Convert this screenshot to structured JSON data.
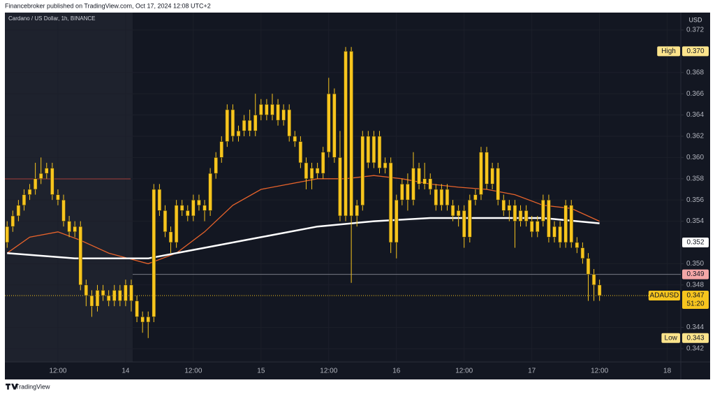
{
  "header": "Financebroker published on TradingView.com, Oct 17, 2024 12:08 UTC+2",
  "footer": "TradingView",
  "chart_data": {
    "type": "candlestick",
    "title": "Cardano / US Dollar, 1h, BINANCE",
    "currency": "USD",
    "color": "#f7c51e",
    "grid": true,
    "xlim": [
      -0.4,
      119.4
    ],
    "ylim": [
      0.34075,
      0.37364
    ],
    "xticks": [
      {
        "value": 9,
        "label": "12:00"
      },
      {
        "value": 21,
        "label": "14"
      },
      {
        "value": 33,
        "label": "12:00"
      },
      {
        "value": 45,
        "label": "15"
      },
      {
        "value": 57,
        "label": "12:00"
      },
      {
        "value": 69,
        "label": "16"
      },
      {
        "value": 81,
        "label": "12:00"
      },
      {
        "value": 93,
        "label": "17"
      },
      {
        "value": 105,
        "label": "12:00"
      },
      {
        "value": 117,
        "label": "18"
      }
    ],
    "yticks": [
      0.342,
      0.344,
      0.348,
      {
        "value": 0.35,
        "label": "0.350"
      },
      0.354,
      0.356,
      0.358,
      {
        "value": 0.36,
        "label": "0.360"
      },
      0.362,
      0.364,
      0.366,
      0.368,
      0.372
    ],
    "candles": [
      [
        0.352,
        0.354,
        0.3515,
        0.3535
      ],
      [
        0.3535,
        0.355,
        0.353,
        0.3545
      ],
      [
        0.3545,
        0.356,
        0.354,
        0.3555
      ],
      [
        0.3555,
        0.357,
        0.355,
        0.3565
      ],
      [
        0.3565,
        0.3575,
        0.356,
        0.357
      ],
      [
        0.357,
        0.3595,
        0.3565,
        0.358
      ],
      [
        0.358,
        0.36,
        0.3575,
        0.3585
      ],
      [
        0.3585,
        0.3595,
        0.358,
        0.359
      ],
      [
        0.359,
        0.3595,
        0.356,
        0.3565
      ],
      [
        0.3565,
        0.357,
        0.3555,
        0.356
      ],
      [
        0.356,
        0.3565,
        0.3535,
        0.354
      ],
      [
        0.354,
        0.3545,
        0.3525,
        0.353
      ],
      [
        0.353,
        0.354,
        0.3525,
        0.3535
      ],
      [
        0.3535,
        0.354,
        0.3475,
        0.348
      ],
      [
        0.348,
        0.3485,
        0.346,
        0.347
      ],
      [
        0.347,
        0.3475,
        0.345,
        0.346
      ],
      [
        0.346,
        0.348,
        0.3455,
        0.3475
      ],
      [
        0.3475,
        0.348,
        0.3465,
        0.347
      ],
      [
        0.347,
        0.3475,
        0.346,
        0.3465
      ],
      [
        0.3465,
        0.348,
        0.346,
        0.3475
      ],
      [
        0.3475,
        0.348,
        0.346,
        0.3465
      ],
      [
        0.3465,
        0.3485,
        0.346,
        0.348
      ],
      [
        0.348,
        0.3485,
        0.3455,
        0.3465
      ],
      [
        0.3465,
        0.347,
        0.3445,
        0.345
      ],
      [
        0.345,
        0.3455,
        0.3435,
        0.3445
      ],
      [
        0.3445,
        0.3455,
        0.343,
        0.345
      ],
      [
        0.345,
        0.3575,
        0.3445,
        0.357
      ],
      [
        0.357,
        0.3575,
        0.3545,
        0.355
      ],
      [
        0.355,
        0.3555,
        0.3525,
        0.353
      ],
      [
        0.353,
        0.3535,
        0.351,
        0.352
      ],
      [
        0.352,
        0.356,
        0.3515,
        0.3555
      ],
      [
        0.3555,
        0.356,
        0.3545,
        0.355
      ],
      [
        0.355,
        0.3555,
        0.354,
        0.3545
      ],
      [
        0.3545,
        0.3565,
        0.354,
        0.356
      ],
      [
        0.356,
        0.3565,
        0.355,
        0.3555
      ],
      [
        0.3555,
        0.356,
        0.354,
        0.355
      ],
      [
        0.355,
        0.359,
        0.3545,
        0.3585
      ],
      [
        0.3585,
        0.3605,
        0.358,
        0.36
      ],
      [
        0.36,
        0.362,
        0.3595,
        0.3615
      ],
      [
        0.3615,
        0.365,
        0.361,
        0.3645
      ],
      [
        0.3645,
        0.365,
        0.3615,
        0.362
      ],
      [
        0.362,
        0.363,
        0.3615,
        0.3625
      ],
      [
        0.3625,
        0.364,
        0.362,
        0.3635
      ],
      [
        0.3635,
        0.3645,
        0.362,
        0.3625
      ],
      [
        0.3625,
        0.366,
        0.362,
        0.364
      ],
      [
        0.364,
        0.3655,
        0.3635,
        0.365
      ],
      [
        0.365,
        0.3655,
        0.3635,
        0.364
      ],
      [
        0.364,
        0.366,
        0.3635,
        0.365
      ],
      [
        0.365,
        0.3655,
        0.363,
        0.3635
      ],
      [
        0.3635,
        0.365,
        0.363,
        0.3645
      ],
      [
        0.3645,
        0.365,
        0.3615,
        0.362
      ],
      [
        0.362,
        0.3625,
        0.361,
        0.3615
      ],
      [
        0.3615,
        0.362,
        0.359,
        0.3595
      ],
      [
        0.3595,
        0.36,
        0.357,
        0.358
      ],
      [
        0.358,
        0.3595,
        0.357,
        0.359
      ],
      [
        0.359,
        0.3595,
        0.358,
        0.3585
      ],
      [
        0.3585,
        0.361,
        0.358,
        0.3605
      ],
      [
        0.3605,
        0.3675,
        0.36,
        0.366
      ],
      [
        0.366,
        0.3665,
        0.3595,
        0.36
      ],
      [
        0.36,
        0.3625,
        0.354,
        0.3545
      ],
      [
        0.3545,
        0.3704,
        0.354,
        0.37
      ],
      [
        0.37,
        0.3704,
        0.3482,
        0.3545
      ],
      [
        0.3545,
        0.356,
        0.3535,
        0.3555
      ],
      [
        0.3555,
        0.3625,
        0.355,
        0.362
      ],
      [
        0.362,
        0.3625,
        0.359,
        0.3595
      ],
      [
        0.3595,
        0.3625,
        0.359,
        0.362
      ],
      [
        0.362,
        0.3625,
        0.3585,
        0.359
      ],
      [
        0.359,
        0.36,
        0.3585,
        0.3595
      ],
      [
        0.3595,
        0.36,
        0.351,
        0.352
      ],
      [
        0.352,
        0.3565,
        0.3505,
        0.356
      ],
      [
        0.356,
        0.358,
        0.3555,
        0.3575
      ],
      [
        0.3575,
        0.3585,
        0.355,
        0.356
      ],
      [
        0.356,
        0.3605,
        0.3555,
        0.359
      ],
      [
        0.359,
        0.3595,
        0.357,
        0.3575
      ],
      [
        0.3575,
        0.3595,
        0.357,
        0.358
      ],
      [
        0.358,
        0.3585,
        0.3565,
        0.357
      ],
      [
        0.357,
        0.3575,
        0.355,
        0.3555
      ],
      [
        0.3555,
        0.3575,
        0.355,
        0.357
      ],
      [
        0.357,
        0.3575,
        0.355,
        0.3555
      ],
      [
        0.3555,
        0.356,
        0.354,
        0.3545
      ],
      [
        0.3545,
        0.3555,
        0.3535,
        0.355
      ],
      [
        0.355,
        0.3555,
        0.3515,
        0.3525
      ],
      [
        0.3525,
        0.3565,
        0.352,
        0.356
      ],
      [
        0.356,
        0.357,
        0.3555,
        0.3565
      ],
      [
        0.3565,
        0.361,
        0.356,
        0.3605
      ],
      [
        0.3605,
        0.361,
        0.357,
        0.3575
      ],
      [
        0.3575,
        0.3595,
        0.357,
        0.359
      ],
      [
        0.359,
        0.3595,
        0.3555,
        0.356
      ],
      [
        0.356,
        0.3565,
        0.3545,
        0.355
      ],
      [
        0.355,
        0.356,
        0.354,
        0.3555
      ],
      [
        0.3555,
        0.356,
        0.3515,
        0.354
      ],
      [
        0.354,
        0.3555,
        0.3535,
        0.355
      ],
      [
        0.355,
        0.3555,
        0.3535,
        0.354
      ],
      [
        0.354,
        0.3545,
        0.3525,
        0.353
      ],
      [
        0.353,
        0.3545,
        0.3525,
        0.354
      ],
      [
        0.354,
        0.3565,
        0.3535,
        0.356
      ],
      [
        0.356,
        0.3565,
        0.352,
        0.3525
      ],
      [
        0.3525,
        0.354,
        0.352,
        0.3535
      ],
      [
        0.3535,
        0.354,
        0.3515,
        0.352
      ],
      [
        0.352,
        0.356,
        0.3515,
        0.3555
      ],
      [
        0.3555,
        0.356,
        0.3515,
        0.352
      ],
      [
        0.352,
        0.3525,
        0.351,
        0.3515
      ],
      [
        0.3515,
        0.352,
        0.35,
        0.3505
      ],
      [
        0.3505,
        0.351,
        0.3465,
        0.349
      ],
      [
        0.349,
        0.3495,
        0.3465,
        0.348
      ],
      [
        0.348,
        0.3485,
        0.3465,
        0.347
      ]
    ],
    "lines": [
      {
        "color": "#e8632b",
        "width": 1.3,
        "x": [
          0,
          4,
          9,
          13,
          18,
          25,
          30,
          35,
          40,
          45,
          50,
          55,
          60,
          65,
          70,
          75,
          80,
          85,
          90,
          95,
          100,
          105
        ],
        "values": [
          0.351,
          0.3525,
          0.353,
          0.3522,
          0.351,
          0.35,
          0.351,
          0.353,
          0.3555,
          0.357,
          0.3575,
          0.358,
          0.358,
          0.3583,
          0.358,
          0.3575,
          0.3572,
          0.357,
          0.3565,
          0.3555,
          0.3552,
          0.354
        ]
      },
      {
        "color": "#ffffff",
        "width": 2.5,
        "x": [
          0,
          12,
          25,
          35,
          45,
          55,
          65,
          75,
          85,
          95,
          105
        ],
        "values": [
          0.351,
          0.3505,
          0.3505,
          0.3515,
          0.3525,
          0.3535,
          0.354,
          0.3543,
          0.3543,
          0.3543,
          0.3538
        ]
      }
    ],
    "markers": [
      {
        "label": "High",
        "value": 0.37,
        "value_label": "0.370",
        "color": "#fce48c",
        "text_color": "#131722"
      },
      {
        "value": 0.352,
        "color": "#ffffff",
        "text_color": "#131722"
      },
      {
        "value": 0.349,
        "color": "#f4a7a7",
        "text_color": "#131722",
        "line": "#787b86"
      },
      {
        "label": "ADAUSD",
        "value": 0.347,
        "countdown": "51:20",
        "color": "#f7c51e",
        "text_color": "#131722",
        "line": "#f7c51e"
      },
      {
        "label": "Low",
        "value": 0.343,
        "color": "#fce48c",
        "text_color": "#131722"
      }
    ]
  }
}
